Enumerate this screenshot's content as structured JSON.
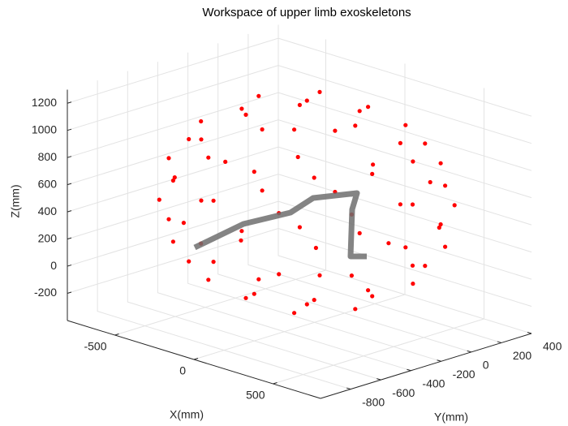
{
  "chart_data": {
    "type": "scatter3d",
    "title": "Workspace of upper limb exoskeletons",
    "xlabel": "X(mm)",
    "ylabel": "Y(mm)",
    "zlabel": "Z(mm)",
    "xlim": [
      -800,
      800
    ],
    "ylim": [
      -1000,
      400
    ],
    "zlim": [
      -400,
      1300
    ],
    "xticks": [
      -500,
      0,
      500
    ],
    "yticks": [
      -800,
      -600,
      -400,
      -200,
      0,
      200,
      400
    ],
    "zticks": [
      -200,
      0,
      200,
      400,
      600,
      800,
      1000,
      1200
    ],
    "grid": true,
    "color": "#ff0000",
    "x": [
      305,
      153,
      -153,
      -305,
      -153,
      153,
      541,
      396,
      145,
      -145,
      -396,
      -541,
      -541,
      -396,
      -145,
      145,
      396,
      541,
      668,
      578,
      334,
      0,
      -334,
      -578,
      -668,
      -578,
      -334,
      0,
      334,
      578,
      676,
      495,
      181,
      -181,
      -495,
      -676,
      -676,
      -495,
      -181,
      181,
      495,
      676,
      668,
      578,
      334,
      0,
      -334,
      -578,
      -668,
      -578,
      -334,
      0,
      334,
      578,
      541,
      396,
      145,
      -145,
      -396,
      -541,
      -541,
      -396,
      -145,
      145,
      396,
      541,
      305,
      153,
      -153,
      -305,
      -153,
      153,
      0,
      0
    ],
    "y": [
      -250,
      -5,
      -5,
      -250,
      -495,
      -495,
      -115,
      118,
      252,
      252,
      118,
      -115,
      -385,
      -618,
      -752,
      -752,
      -618,
      -385,
      -250,
      60,
      287,
      370,
      287,
      60,
      -250,
      -560,
      -787,
      -870,
      -787,
      -560,
      -82,
      210,
      378,
      378,
      210,
      -82,
      -418,
      -710,
      -878,
      -878,
      -710,
      -418,
      -250,
      60,
      287,
      370,
      287,
      60,
      -250,
      -560,
      -787,
      -870,
      -787,
      -560,
      -115,
      118,
      252,
      252,
      118,
      -115,
      -385,
      -618,
      -752,
      -752,
      -618,
      -385,
      -250,
      -5,
      -5,
      -250,
      -495,
      -495,
      -250,
      -250
    ],
    "z": [
      -175,
      -175,
      -175,
      -175,
      -175,
      -175,
      50,
      50,
      50,
      50,
      50,
      50,
      50,
      50,
      50,
      50,
      50,
      50,
      275,
      275,
      275,
      275,
      275,
      275,
      275,
      275,
      275,
      275,
      275,
      275,
      500,
      500,
      500,
      500,
      500,
      500,
      500,
      500,
      500,
      500,
      500,
      500,
      725,
      725,
      725,
      725,
      725,
      725,
      725,
      725,
      725,
      725,
      725,
      725,
      950,
      950,
      950,
      950,
      950,
      950,
      950,
      950,
      950,
      950,
      950,
      950,
      1175,
      1175,
      1175,
      1175,
      1175,
      1175,
      -250,
      1250
    ]
  }
}
